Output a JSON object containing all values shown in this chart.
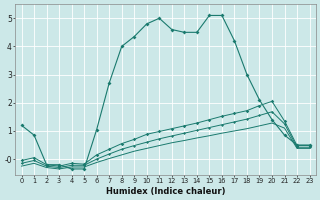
{
  "xlabel": "Humidex (Indice chaleur)",
  "xlim": [
    -0.5,
    23.5
  ],
  "ylim": [
    -0.55,
    5.5
  ],
  "yticks": [
    0,
    1,
    2,
    3,
    4,
    5
  ],
  "ytick_labels": [
    "-0",
    "1",
    "2",
    "3",
    "4",
    "5"
  ],
  "xticks": [
    0,
    1,
    2,
    3,
    4,
    5,
    6,
    7,
    8,
    9,
    10,
    11,
    12,
    13,
    14,
    15,
    16,
    17,
    18,
    19,
    20,
    21,
    22,
    23
  ],
  "background_color": "#cce8e8",
  "grid_color": "#ffffff",
  "line_color": "#1a7a6e",
  "curve1_x": [
    0,
    1,
    2,
    3,
    4,
    5,
    6,
    7,
    8,
    9,
    10,
    11,
    12,
    13,
    14,
    15,
    16,
    17,
    18,
    19,
    20,
    21,
    22,
    23
  ],
  "curve1_y": [
    1.2,
    0.85,
    -0.2,
    -0.2,
    -0.35,
    -0.35,
    1.05,
    2.7,
    4.0,
    4.35,
    4.8,
    5.0,
    4.6,
    4.5,
    4.5,
    5.1,
    5.1,
    4.2,
    3.0,
    2.1,
    1.4,
    0.85,
    0.5,
    0.5
  ],
  "curve2_x": [
    0,
    1,
    2,
    3,
    4,
    5,
    6,
    7,
    8,
    9,
    10,
    11,
    12,
    13,
    14,
    15,
    16,
    17,
    18,
    19,
    20,
    21,
    22,
    23
  ],
  "curve2_y": [
    -0.05,
    0.05,
    -0.2,
    -0.25,
    -0.15,
    -0.18,
    0.15,
    0.35,
    0.55,
    0.7,
    0.88,
    0.98,
    1.08,
    1.18,
    1.28,
    1.4,
    1.52,
    1.62,
    1.72,
    1.9,
    2.05,
    1.35,
    0.48,
    0.48
  ],
  "curve3_x": [
    0,
    1,
    2,
    3,
    4,
    5,
    6,
    7,
    8,
    9,
    10,
    11,
    12,
    13,
    14,
    15,
    16,
    17,
    18,
    19,
    20,
    21,
    22,
    23
  ],
  "curve3_y": [
    -0.15,
    -0.05,
    -0.25,
    -0.3,
    -0.22,
    -0.22,
    0.0,
    0.18,
    0.35,
    0.48,
    0.6,
    0.72,
    0.82,
    0.92,
    1.02,
    1.12,
    1.22,
    1.32,
    1.42,
    1.55,
    1.68,
    1.25,
    0.42,
    0.42
  ],
  "curve4_x": [
    0,
    1,
    2,
    3,
    4,
    5,
    6,
    7,
    8,
    9,
    10,
    11,
    12,
    13,
    14,
    15,
    16,
    17,
    18,
    19,
    20,
    21,
    22,
    23
  ],
  "curve4_y": [
    -0.25,
    -0.15,
    -0.3,
    -0.35,
    -0.28,
    -0.28,
    -0.12,
    0.02,
    0.15,
    0.28,
    0.38,
    0.48,
    0.58,
    0.66,
    0.75,
    0.83,
    0.92,
    1.0,
    1.08,
    1.18,
    1.28,
    1.1,
    0.38,
    0.38
  ]
}
